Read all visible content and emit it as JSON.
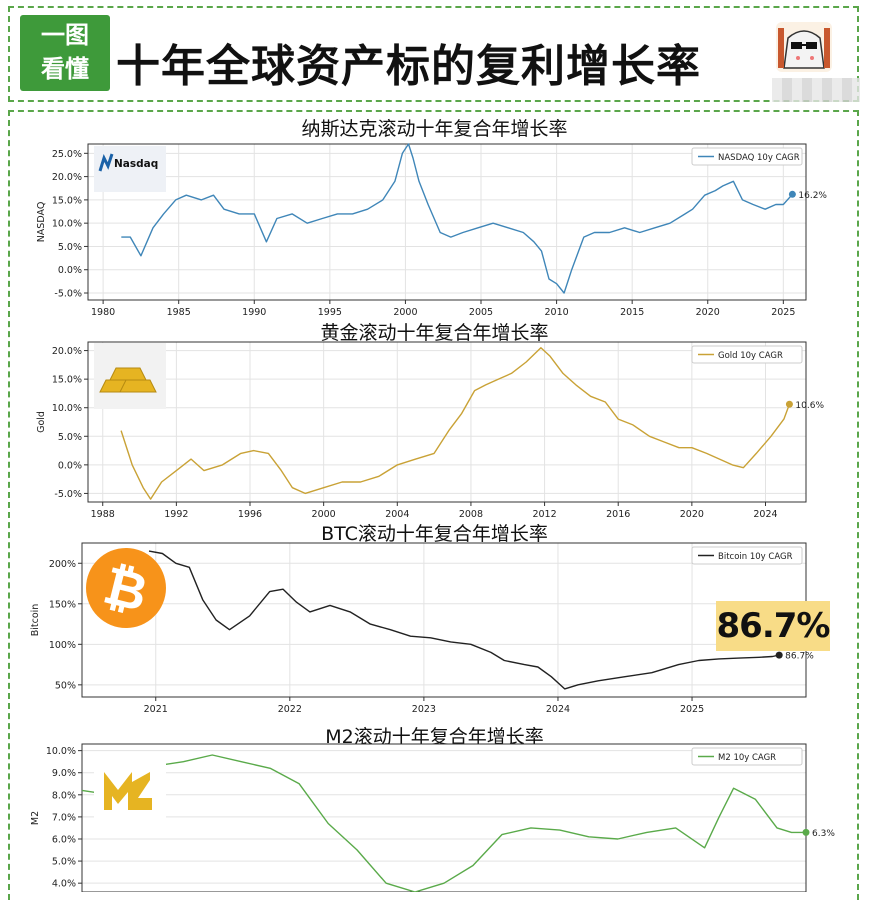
{
  "header": {
    "badge_line1": "一图",
    "badge_line2": "看懂",
    "title": "十年全球资产标的复利增长率"
  },
  "colors": {
    "frame": "#5aa64a",
    "badge": "#3e9a3a"
  },
  "charts": [
    {
      "title": "纳斯达克滚动十年复合年增长率",
      "ylabel": "NASDAQ",
      "logo_text": "Nasdaq",
      "legend": "NASDAQ 10y CAGR",
      "end_label": "16.2%",
      "color": "#3f86b8",
      "yticks": [
        "25.0%",
        "20.0%",
        "15.0%",
        "10.0%",
        "5.0%",
        "0.0%",
        "-5.0%"
      ],
      "xticks": [
        "1980",
        "1985",
        "1990",
        "1995",
        "2000",
        "2005",
        "2010",
        "2015",
        "2020",
        "2025"
      ]
    },
    {
      "title": "黄金滚动十年复合年增长率",
      "ylabel": "Gold",
      "legend": "Gold 10y CAGR",
      "end_label": "10.6%",
      "color": "#c9a236",
      "yticks": [
        "20.0%",
        "15.0%",
        "10.0%",
        "5.0%",
        "0.0%",
        "-5.0%"
      ],
      "xticks": [
        "1988",
        "1992",
        "1996",
        "2000",
        "2004",
        "2008",
        "2012",
        "2016",
        "2020",
        "2024"
      ]
    },
    {
      "title": "BTC滚动十年复合年增长率",
      "ylabel": "Bitcoin",
      "legend": "Bitcoin 10y CAGR",
      "end_label": "86.7%",
      "callout": "86.7%",
      "color": "#222222",
      "yticks": [
        "200%",
        "150%",
        "100%",
        "50%"
      ],
      "xticks": [
        "2021",
        "2022",
        "2023",
        "2024",
        "2025"
      ]
    },
    {
      "title": "M2滚动十年复合年增长率",
      "ylabel": "M2",
      "legend": "M2 10y CAGR",
      "end_label": "6.3%",
      "color": "#5aaa4a",
      "yticks": [
        "10.0%",
        "9.0%",
        "8.0%",
        "7.0%",
        "6.0%",
        "5.0%",
        "4.0%"
      ],
      "xticks": []
    }
  ],
  "chart_data": [
    {
      "type": "line",
      "title": "纳斯达克滚动十年复合年增长率",
      "ylabel": "NASDAQ",
      "xlim": [
        1979,
        2026.5
      ],
      "ylim": [
        -6.5,
        27
      ],
      "series": [
        {
          "name": "NASDAQ 10y CAGR",
          "x": [
            1981.2,
            1981.8,
            1982.5,
            1983.3,
            1984.0,
            1984.8,
            1985.5,
            1986.5,
            1987.3,
            1988.0,
            1989.0,
            1990.0,
            1990.8,
            1991.5,
            1992.5,
            1993.5,
            1994.5,
            1995.5,
            1996.5,
            1997.5,
            1998.5,
            1999.3,
            1999.8,
            2000.2,
            2000.5,
            2000.9,
            2001.5,
            2002.3,
            2003.0,
            2003.8,
            2004.8,
            2005.8,
            2006.8,
            2007.8,
            2008.5,
            2009.0,
            2009.5,
            2010.0,
            2010.5,
            2011.0,
            2011.8,
            2012.5,
            2013.5,
            2014.5,
            2015.5,
            2016.5,
            2017.5,
            2018.5,
            2019.0,
            2019.8,
            2020.5,
            2021.0,
            2021.7,
            2022.3,
            2023.0,
            2023.8,
            2024.5,
            2025.0,
            2025.6
          ],
          "values": [
            7,
            7,
            3,
            9,
            12,
            15,
            16,
            15,
            16,
            13,
            12,
            12,
            6,
            11,
            12,
            10,
            11,
            12,
            12,
            13,
            15,
            19,
            25,
            27,
            24,
            19,
            14,
            8,
            7,
            8,
            9,
            10,
            9,
            8,
            6,
            4,
            -2,
            -3,
            -5,
            0,
            7,
            8,
            8,
            9,
            8,
            9,
            10,
            12,
            13,
            16,
            17,
            18,
            19,
            15,
            14,
            13,
            14,
            14,
            16.2
          ]
        }
      ],
      "end_label": "16.2%"
    },
    {
      "type": "line",
      "title": "黄金滚动十年复合年增长率",
      "ylabel": "Gold",
      "xlim": [
        1987.2,
        2026.2
      ],
      "ylim": [
        -6.5,
        21.5
      ],
      "series": [
        {
          "name": "Gold 10y CAGR",
          "x": [
            1989.0,
            1989.6,
            1990.2,
            1990.6,
            1991.2,
            1992.0,
            1992.8,
            1993.5,
            1994.5,
            1995.5,
            1996.2,
            1997.0,
            1997.7,
            1998.3,
            1999.0,
            2000.0,
            2001.0,
            2002.0,
            2003.0,
            2004.0,
            2005.0,
            2006.0,
            2006.8,
            2007.5,
            2008.2,
            2008.8,
            2009.5,
            2010.2,
            2011.0,
            2011.8,
            2012.3,
            2013.0,
            2013.7,
            2014.5,
            2015.3,
            2016.0,
            2016.8,
            2017.7,
            2018.5,
            2019.3,
            2020.0,
            2020.8,
            2021.5,
            2022.2,
            2022.8,
            2023.5,
            2024.3,
            2025.0,
            2025.3
          ],
          "values": [
            6,
            0,
            -4,
            -6,
            -3,
            -1,
            1,
            -1,
            0,
            2,
            2.5,
            2,
            -1,
            -4,
            -5,
            -4,
            -3,
            -3,
            -2,
            0,
            1,
            2,
            6,
            9,
            13,
            14,
            15,
            16,
            18,
            20.5,
            19,
            16,
            14,
            12,
            11,
            8,
            7,
            5,
            4,
            3,
            3,
            2,
            1,
            0,
            -0.5,
            2,
            5,
            8,
            10.6
          ]
        }
      ],
      "end_label": "10.6%"
    },
    {
      "type": "line",
      "title": "BTC滚动十年复合年增长率",
      "ylabel": "Bitcoin",
      "xlim": [
        2020.45,
        2025.85
      ],
      "ylim": [
        35,
        225
      ],
      "series": [
        {
          "name": "Bitcoin 10y CAGR",
          "x": [
            2020.95,
            2021.05,
            2021.15,
            2021.25,
            2021.35,
            2021.45,
            2021.55,
            2021.7,
            2021.85,
            2021.95,
            2022.05,
            2022.15,
            2022.3,
            2022.45,
            2022.6,
            2022.75,
            2022.9,
            2023.05,
            2023.2,
            2023.35,
            2023.5,
            2023.6,
            2023.75,
            2023.85,
            2023.95,
            2024.05,
            2024.15,
            2024.3,
            2024.5,
            2024.7,
            2024.9,
            2025.05,
            2025.2,
            2025.35,
            2025.5,
            2025.6,
            2025.65
          ],
          "values": [
            215,
            212,
            200,
            195,
            155,
            130,
            118,
            135,
            165,
            168,
            152,
            140,
            148,
            140,
            125,
            118,
            110,
            108,
            103,
            100,
            90,
            80,
            75,
            72,
            60,
            45,
            50,
            55,
            60,
            65,
            75,
            80,
            82,
            83,
            84,
            85,
            86.7
          ]
        }
      ],
      "end_label": "86.7%"
    },
    {
      "type": "line",
      "title": "M2滚动十年复合年增长率",
      "ylabel": "M2",
      "xlim": [
        0,
        100
      ],
      "ylim": [
        3.6,
        10.3
      ],
      "series": [
        {
          "name": "M2 10y CAGR",
          "x": [
            0,
            4,
            7,
            10,
            14,
            18,
            22,
            26,
            30,
            34,
            38,
            42,
            46,
            50,
            54,
            58,
            62,
            66,
            70,
            74,
            78,
            82,
            86,
            88,
            90,
            93,
            96,
            98,
            100
          ],
          "values": [
            8.2,
            8.0,
            8.2,
            9.3,
            9.5,
            9.8,
            9.5,
            9.2,
            8.5,
            6.7,
            5.5,
            4.0,
            3.6,
            4.0,
            4.8,
            6.2,
            6.5,
            6.4,
            6.1,
            6.0,
            6.3,
            6.5,
            5.6,
            7.0,
            8.3,
            7.8,
            6.5,
            6.3,
            6.3
          ]
        }
      ],
      "end_label": "6.3%"
    }
  ]
}
